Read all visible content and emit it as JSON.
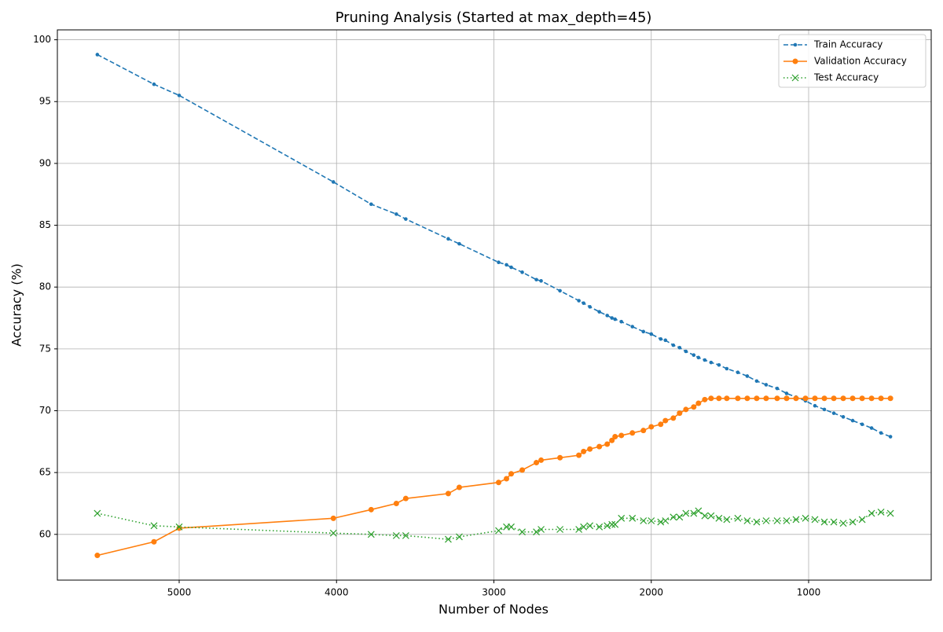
{
  "chart_data": {
    "type": "line",
    "title": "Pruning Analysis (Started at max_depth=45)",
    "xlabel": "Number of Nodes",
    "ylabel": "Accuracy (%)",
    "x": [
      5520,
      5160,
      5000,
      4020,
      3780,
      3620,
      3560,
      3290,
      3220,
      2970,
      2920,
      2890,
      2820,
      2730,
      2700,
      2580,
      2460,
      2430,
      2390,
      2330,
      2280,
      2250,
      2230,
      2190,
      2120,
      2050,
      2000,
      1940,
      1910,
      1860,
      1820,
      1780,
      1730,
      1700,
      1660,
      1620,
      1570,
      1520,
      1450,
      1390,
      1330,
      1270,
      1200,
      1140,
      1080,
      1020,
      960,
      900,
      840,
      780,
      720,
      660,
      600,
      540,
      480
    ],
    "series": [
      {
        "name": "Train Accuracy",
        "color": "#1f77b4",
        "marker": "dot",
        "dash": "dashed",
        "values": [
          98.8,
          96.4,
          95.5,
          88.5,
          86.7,
          85.9,
          85.5,
          83.9,
          83.5,
          82.0,
          81.8,
          81.6,
          81.2,
          80.6,
          80.5,
          79.7,
          78.9,
          78.7,
          78.4,
          78.0,
          77.7,
          77.5,
          77.4,
          77.2,
          76.8,
          76.4,
          76.2,
          75.8,
          75.7,
          75.3,
          75.1,
          74.8,
          74.5,
          74.3,
          74.1,
          73.9,
          73.7,
          73.4,
          73.1,
          72.8,
          72.4,
          72.1,
          71.8,
          71.4,
          71.1,
          70.8,
          70.4,
          70.1,
          69.8,
          69.5,
          69.2,
          68.9,
          68.6,
          68.2,
          67.9
        ]
      },
      {
        "name": "Validation Accuracy",
        "color": "#ff7f0e",
        "marker": "circle",
        "dash": "solid",
        "values": [
          58.3,
          59.4,
          60.5,
          61.3,
          62.0,
          62.5,
          62.9,
          63.3,
          63.8,
          64.2,
          64.5,
          64.9,
          65.2,
          65.8,
          66.0,
          66.2,
          66.4,
          66.7,
          66.9,
          67.1,
          67.3,
          67.6,
          67.9,
          68.0,
          68.2,
          68.4,
          68.7,
          68.9,
          69.2,
          69.4,
          69.8,
          70.1,
          70.3,
          70.6,
          70.9,
          71.0,
          71.0,
          71.0,
          71.0,
          71.0,
          71.0,
          71.0,
          71.0,
          71.0,
          71.0,
          71.0,
          71.0,
          71.0,
          71.0,
          71.0,
          71.0,
          71.0,
          71.0,
          71.0,
          71.0
        ]
      },
      {
        "name": "Test Accuracy",
        "color": "#2ca02c",
        "marker": "x",
        "dash": "dotted",
        "values": [
          61.7,
          60.7,
          60.6,
          60.1,
          60.0,
          59.9,
          59.9,
          59.6,
          59.8,
          60.3,
          60.6,
          60.6,
          60.2,
          60.2,
          60.4,
          60.4,
          60.4,
          60.6,
          60.7,
          60.6,
          60.7,
          60.8,
          60.8,
          61.3,
          61.3,
          61.1,
          61.1,
          61.0,
          61.1,
          61.4,
          61.4,
          61.7,
          61.7,
          61.9,
          61.5,
          61.5,
          61.3,
          61.2,
          61.3,
          61.1,
          61.0,
          61.1,
          61.1,
          61.1,
          61.2,
          61.3,
          61.2,
          61.0,
          61.0,
          60.9,
          61.0,
          61.2,
          61.7,
          61.8,
          61.7
        ]
      }
    ],
    "xlim": [
      5774,
      221
    ],
    "xticks": [
      5000,
      4000,
      3000,
      2000,
      1000
    ],
    "ylim": [
      56.3,
      100.8
    ],
    "yticks": [
      60,
      65,
      70,
      75,
      80,
      85,
      90,
      95,
      100
    ],
    "grid": true,
    "legend": "upper right"
  }
}
